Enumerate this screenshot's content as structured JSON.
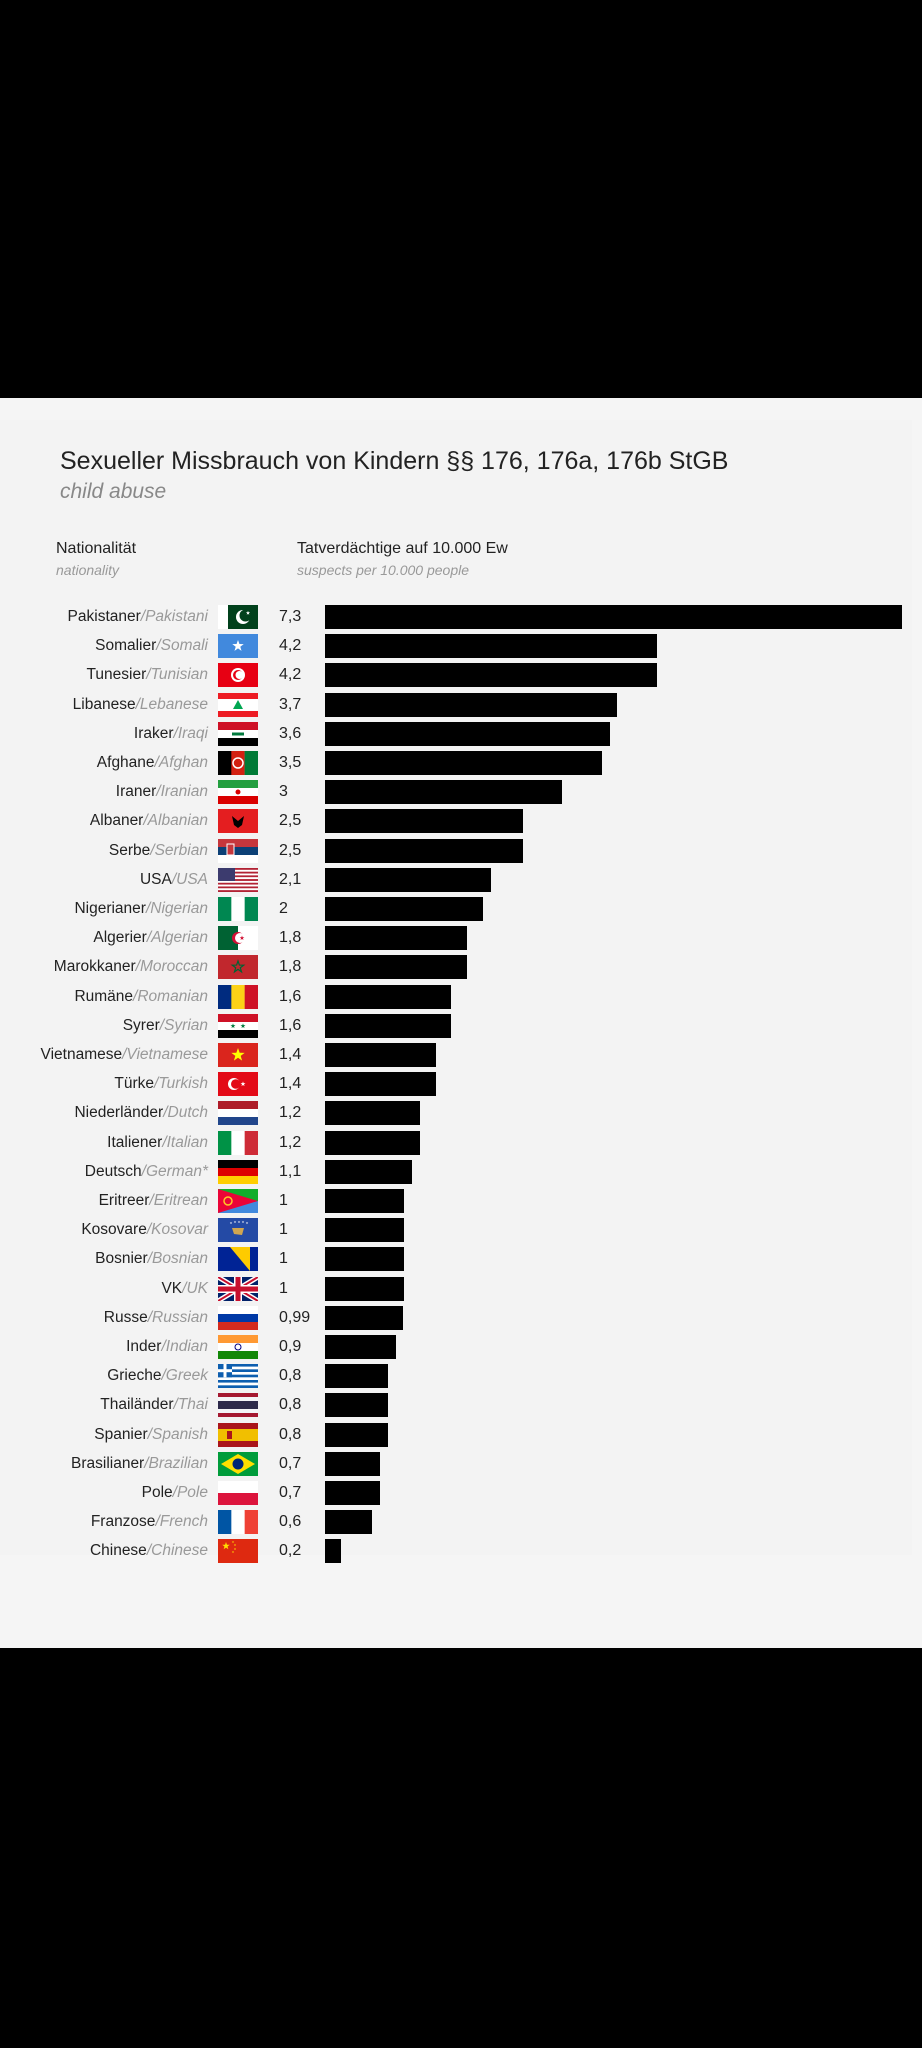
{
  "chart_data": {
    "type": "bar",
    "orientation": "horizontal",
    "title": "Sexueller Missbrauch von Kindern §§ 176, 176a, 176b StGB",
    "subtitle": "child abuse",
    "category_header": "Nationalität",
    "category_header_en": "nationality",
    "value_header": "Tatverdächtige auf 10.000 Ew",
    "value_header_en": "suspects per 10.000 people",
    "xlim": [
      0,
      7.3
    ],
    "rows": [
      {
        "de": "Pakistaner",
        "en": "Pakistani",
        "value": 7.3,
        "label": "7,3",
        "flag": "pakistan-flag-icon"
      },
      {
        "de": "Somalier",
        "en": "Somali",
        "value": 4.2,
        "label": "4,2",
        "flag": "somalia-flag-icon"
      },
      {
        "de": "Tunesier",
        "en": "Tunisian",
        "value": 4.2,
        "label": "4,2",
        "flag": "tunisia-flag-icon"
      },
      {
        "de": "Libanese",
        "en": "Lebanese",
        "value": 3.7,
        "label": "3,7",
        "flag": "lebanon-flag-icon"
      },
      {
        "de": "Iraker",
        "en": "Iraqi",
        "value": 3.6,
        "label": "3,6",
        "flag": "iraq-flag-icon"
      },
      {
        "de": "Afghane",
        "en": "Afghan",
        "value": 3.5,
        "label": "3,5",
        "flag": "afghanistan-flag-icon"
      },
      {
        "de": "Iraner",
        "en": "Iranian",
        "value": 3,
        "label": "3",
        "flag": "iran-flag-icon"
      },
      {
        "de": "Albaner",
        "en": "Albanian",
        "value": 2.5,
        "label": "2,5",
        "flag": "albania-flag-icon"
      },
      {
        "de": "Serbe",
        "en": "Serbian",
        "value": 2.5,
        "label": "2,5",
        "flag": "serbia-flag-icon"
      },
      {
        "de": "USA",
        "en": "USA",
        "value": 2.1,
        "label": "2,1",
        "flag": "usa-flag-icon"
      },
      {
        "de": "Nigerianer",
        "en": "Nigerian",
        "value": 2,
        "label": "2",
        "flag": "nigeria-flag-icon"
      },
      {
        "de": "Algerier",
        "en": "Algerian",
        "value": 1.8,
        "label": "1,8",
        "flag": "algeria-flag-icon"
      },
      {
        "de": "Marokkaner",
        "en": "Moroccan",
        "value": 1.8,
        "label": "1,8",
        "flag": "morocco-flag-icon"
      },
      {
        "de": "Rumäne",
        "en": "Romanian",
        "value": 1.6,
        "label": "1,6",
        "flag": "romania-flag-icon"
      },
      {
        "de": "Syrer",
        "en": "Syrian",
        "value": 1.6,
        "label": "1,6",
        "flag": "syria-flag-icon"
      },
      {
        "de": "Vietnamese",
        "en": "Vietnamese",
        "value": 1.4,
        "label": "1,4",
        "flag": "vietnam-flag-icon"
      },
      {
        "de": "Türke",
        "en": "Turkish",
        "value": 1.4,
        "label": "1,4",
        "flag": "turkey-flag-icon"
      },
      {
        "de": "Niederländer",
        "en": "Dutch",
        "value": 1.2,
        "label": "1,2",
        "flag": "netherlands-flag-icon"
      },
      {
        "de": "Italiener",
        "en": "Italian",
        "value": 1.2,
        "label": "1,2",
        "flag": "italy-flag-icon"
      },
      {
        "de": "Deutsch",
        "en": "German*",
        "value": 1.1,
        "label": "1,1",
        "flag": "germany-flag-icon"
      },
      {
        "de": "Eritreer",
        "en": "Eritrean",
        "value": 1,
        "label": "1",
        "flag": "eritrea-flag-icon"
      },
      {
        "de": "Kosovare",
        "en": "Kosovar",
        "value": 1,
        "label": "1",
        "flag": "kosovo-flag-icon"
      },
      {
        "de": "Bosnier",
        "en": "Bosnian",
        "value": 1,
        "label": "1",
        "flag": "bosnia-flag-icon"
      },
      {
        "de": "VK",
        "en": "UK",
        "value": 1,
        "label": "1",
        "flag": "uk-flag-icon"
      },
      {
        "de": "Russe",
        "en": "Russian",
        "value": 0.99,
        "label": "0,99",
        "flag": "russia-flag-icon"
      },
      {
        "de": "Inder",
        "en": "Indian",
        "value": 0.9,
        "label": "0,9",
        "flag": "india-flag-icon"
      },
      {
        "de": "Grieche",
        "en": "Greek",
        "value": 0.8,
        "label": "0,8",
        "flag": "greece-flag-icon"
      },
      {
        "de": "Thailänder",
        "en": "Thai",
        "value": 0.8,
        "label": "0,8",
        "flag": "thailand-flag-icon"
      },
      {
        "de": "Spanier",
        "en": "Spanish",
        "value": 0.8,
        "label": "0,8",
        "flag": "spain-flag-icon"
      },
      {
        "de": "Brasilianer",
        "en": "Brazilian",
        "value": 0.7,
        "label": "0,7",
        "flag": "brazil-flag-icon"
      },
      {
        "de": "Pole",
        "en": "Pole",
        "value": 0.7,
        "label": "0,7",
        "flag": "poland-flag-icon"
      },
      {
        "de": "Franzose",
        "en": "French",
        "value": 0.6,
        "label": "0,6",
        "flag": "france-flag-icon"
      },
      {
        "de": "Chinese",
        "en": "Chinese",
        "value": 0.2,
        "label": "0,2",
        "flag": "china-flag-icon"
      }
    ]
  }
}
